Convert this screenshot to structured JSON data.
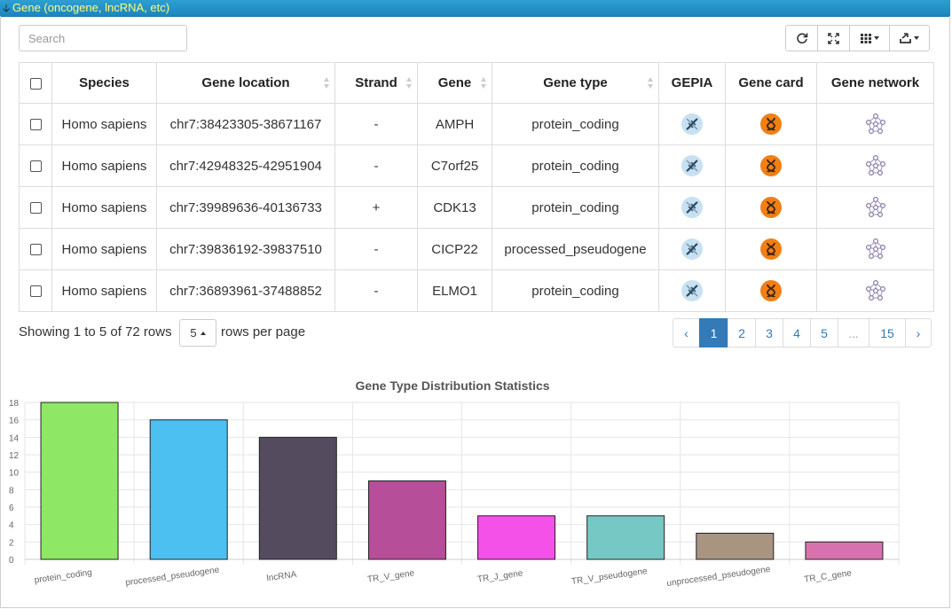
{
  "panel": {
    "title": "Gene (oncogene, lncRNA, etc)"
  },
  "search": {
    "placeholder": "Search"
  },
  "toolbar": {
    "buttons": [
      "refresh-icon",
      "fullscreen-icon",
      "columns-icon",
      "export-icon"
    ]
  },
  "table": {
    "headers": [
      "Species",
      "Gene location",
      "Strand",
      "Gene",
      "Gene type",
      "GEPIA",
      "Gene card",
      "Gene network"
    ],
    "rows": [
      {
        "species": "Homo sapiens",
        "location": "chr7:38423305-38671167",
        "strand": "-",
        "gene": "AMPH",
        "type": "protein_coding"
      },
      {
        "species": "Homo sapiens",
        "location": "chr7:42948325-42951904",
        "strand": "-",
        "gene": "C7orf25",
        "type": "protein_coding"
      },
      {
        "species": "Homo sapiens",
        "location": "chr7:39989636-40136733",
        "strand": "+",
        "gene": "CDK13",
        "type": "protein_coding"
      },
      {
        "species": "Homo sapiens",
        "location": "chr7:39836192-39837510",
        "strand": "-",
        "gene": "CICP22",
        "type": "processed_pseudogene"
      },
      {
        "species": "Homo sapiens",
        "location": "chr7:36893961-37488852",
        "strand": "-",
        "gene": "ELMO1",
        "type": "protein_coding"
      }
    ],
    "icons": {
      "gepia": "dna-helix-icon",
      "genecard": "dna-card-icon",
      "network": "network-icon"
    }
  },
  "pagination": {
    "info": "Showing 1 to 5 of 72 rows",
    "rows_per_page": "5",
    "rows_label": "rows per page",
    "pages": [
      "‹",
      "1",
      "2",
      "3",
      "4",
      "5",
      "...",
      "15",
      "›"
    ],
    "active": "1"
  },
  "chart_data": {
    "type": "bar",
    "title": "Gene Type Distribution Statistics",
    "categories": [
      "protein_coding",
      "processed_pseudogene",
      "lncRNA",
      "TR_V_gene",
      "TR_J_gene",
      "TR_V_pseudogene",
      "unprocessed_pseudogene",
      "TR_C_gene"
    ],
    "values": [
      18,
      16,
      14,
      9,
      5,
      5,
      3,
      2
    ],
    "colors": [
      "#8ee865",
      "#4cc0f0",
      "#554b5e",
      "#b64e99",
      "#f451e9",
      "#76c8c4",
      "#a99482",
      "#d872af"
    ],
    "yticks": [
      "0",
      "2",
      "4",
      "6",
      "8",
      "10",
      "12",
      "14",
      "16",
      "18"
    ],
    "ylim": [
      0,
      18
    ],
    "grid": true
  }
}
